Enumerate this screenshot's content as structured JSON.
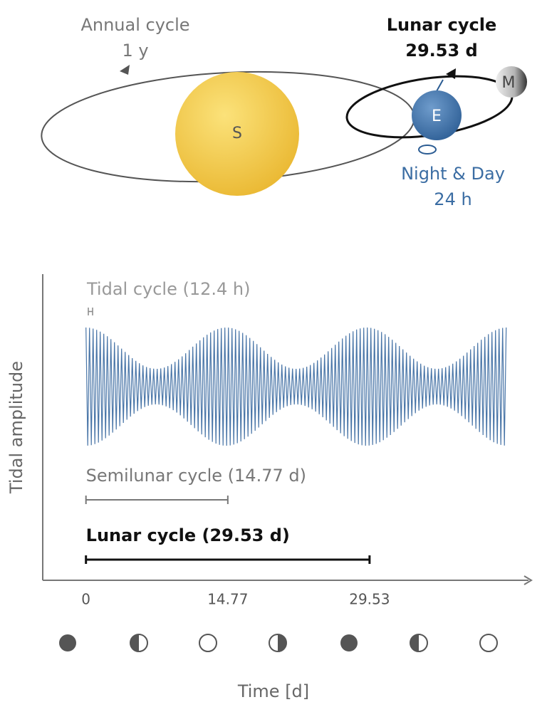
{
  "diagram": {
    "sun": "S",
    "earth": "E",
    "moon": "M",
    "annual_cycle": {
      "label": "Annual cycle",
      "period": "1 y"
    },
    "lunar_cycle": {
      "label": "Lunar cycle",
      "period": "29.53 d"
    },
    "night_day": {
      "label": "Night & Day",
      "period": "24 h"
    }
  },
  "chart_data": {
    "type": "interval",
    "title": "Tidal cycle (12.4 h)",
    "ylabel": "Tidal amplitude",
    "xlabel": "Time [d]",
    "xlim": [
      -4.5,
      46.3
    ],
    "xticks": [
      0,
      14.77,
      29.53
    ],
    "series": [
      {
        "name": "Semilunar cycle (14.77 d)",
        "color": "#777777",
        "values": [
          0,
          14.77
        ]
      },
      {
        "name": "Lunar cycle (29.53 d)",
        "color": "#111111",
        "values": [
          0,
          29.53
        ]
      }
    ]
  }
}
